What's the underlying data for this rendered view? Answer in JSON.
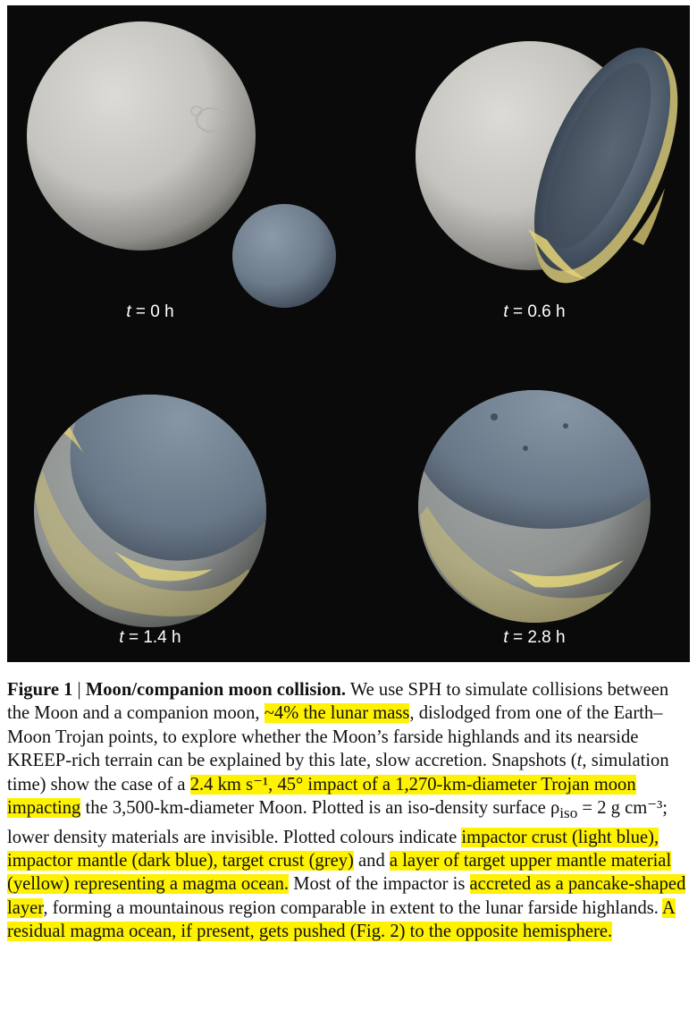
{
  "panels": [
    {
      "label_var": "t",
      "label_value": " = 0 h"
    },
    {
      "label_var": "t",
      "label_value": " = 0.6 h"
    },
    {
      "label_var": "t",
      "label_value": " = 1.4 h"
    },
    {
      "label_var": "t",
      "label_value": " = 2.8 h"
    }
  ],
  "colors": {
    "background": "#0a0a0a",
    "target_grey": "#c9c8c3",
    "impactor_blue": "#6f7f8f",
    "impactor_dark_blue": "#4a5a6c",
    "magma_yellow": "#e8d77a",
    "highlight": "#fff200"
  },
  "caption": {
    "fig_label": "Figure 1",
    "separator": " | ",
    "title": "Moon/companion moon collision.",
    "s1": " We use SPH to simulate collisions between the Moon and a companion moon, ",
    "h1": "~4% the lunar mass",
    "s2": ", dislodged from one of the Earth–Moon Trojan points, to explore whether the Moon’s farside highlands and its nearside KREEP-rich terrain can be explained by this late, slow accretion. Snapshots (",
    "s2_var": "t",
    "s2b": ", simulation time) show the case of a ",
    "h2": "2.4 km s⁻¹, 45° impact of a 1,270-km-diameter Trojan moon impacting",
    "s3": " the 3,500-km-diameter Moon. Plotted is an iso-density surface ρ",
    "s3_sub": "iso",
    "s3b": " = 2 g cm⁻³; lower density materials are invisible. Plotted colours indicate ",
    "h3": "impactor crust (light blue), impactor mantle (dark blue), target crust (grey)",
    "s4": " and ",
    "h4": "a layer of target upper mantle material (yellow) representing a magma ocean.",
    "s5": " Most of the impactor is ",
    "h5": "accreted as a pancake-shaped layer",
    "s6": ", forming a mountainous region comparable in extent to the lunar farside highlands. ",
    "h6": "A residual magma ocean, if present, gets pushed (Fig. 2) to the opposite hemisphere."
  }
}
